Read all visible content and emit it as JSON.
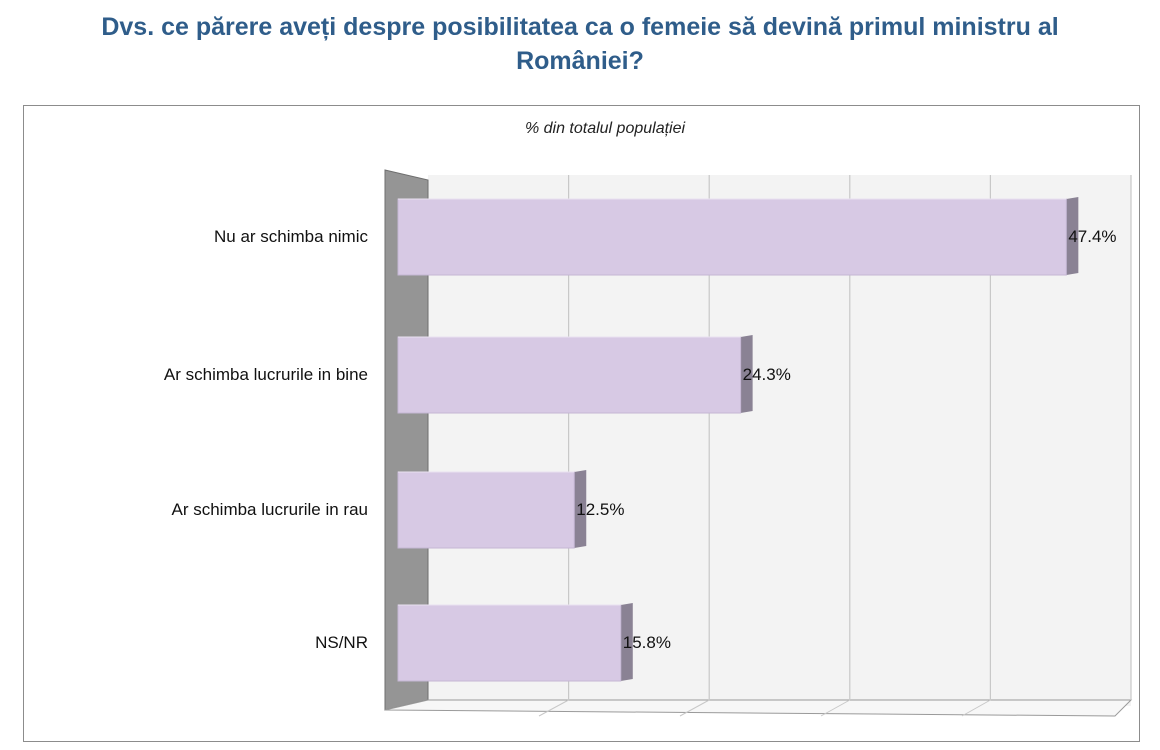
{
  "title": {
    "line1": "Dvs. ce părere aveți despre posibilitatea ca o femeie să devină primul ministru al",
    "line2": "României?"
  },
  "chart_data": {
    "type": "bar",
    "orientation": "horizontal",
    "subtitle": "% din totalul populației",
    "categories": [
      "Nu ar schimba nimic",
      "Ar schimba lucrurile in bine",
      "Ar schimba lucrurile in rau",
      "NS/NR"
    ],
    "values": [
      47.4,
      24.3,
      12.5,
      15.8
    ],
    "value_labels": [
      "47.4%",
      "24.3%",
      "12.5%",
      "15.8%"
    ],
    "xlim": [
      0,
      50
    ],
    "grid": true,
    "legend": "none",
    "colors": {
      "bar": "#d7c9e4",
      "bar_side": "#8a8294",
      "wall": "#959595",
      "grid": "#c8c8c8"
    }
  }
}
